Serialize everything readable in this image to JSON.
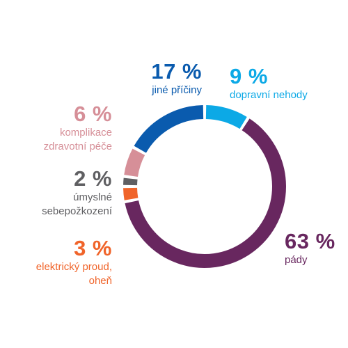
{
  "chart_data": {
    "type": "pie",
    "slices": [
      {
        "label": "dopravní nehody",
        "percent_label": "9 %",
        "value": 9,
        "color": "#0CA9E6"
      },
      {
        "label": "pády",
        "percent_label": "63 %",
        "value": 63,
        "color": "#68275F"
      },
      {
        "label": "elektrický proud,\noheň",
        "percent_label": "3 %",
        "value": 3,
        "color": "#F0642A"
      },
      {
        "label": "úmyslné\nsebepožkození",
        "percent_label": "2 %",
        "value": 2,
        "color": "#5F5F62"
      },
      {
        "label": "komplikace\nzdravotní péče",
        "percent_label": "6 %",
        "value": 6,
        "color": "#D68F98"
      },
      {
        "label": "jiné příčiny",
        "percent_label": "17 %",
        "value": 17,
        "color": "#0A5BAE"
      }
    ]
  }
}
